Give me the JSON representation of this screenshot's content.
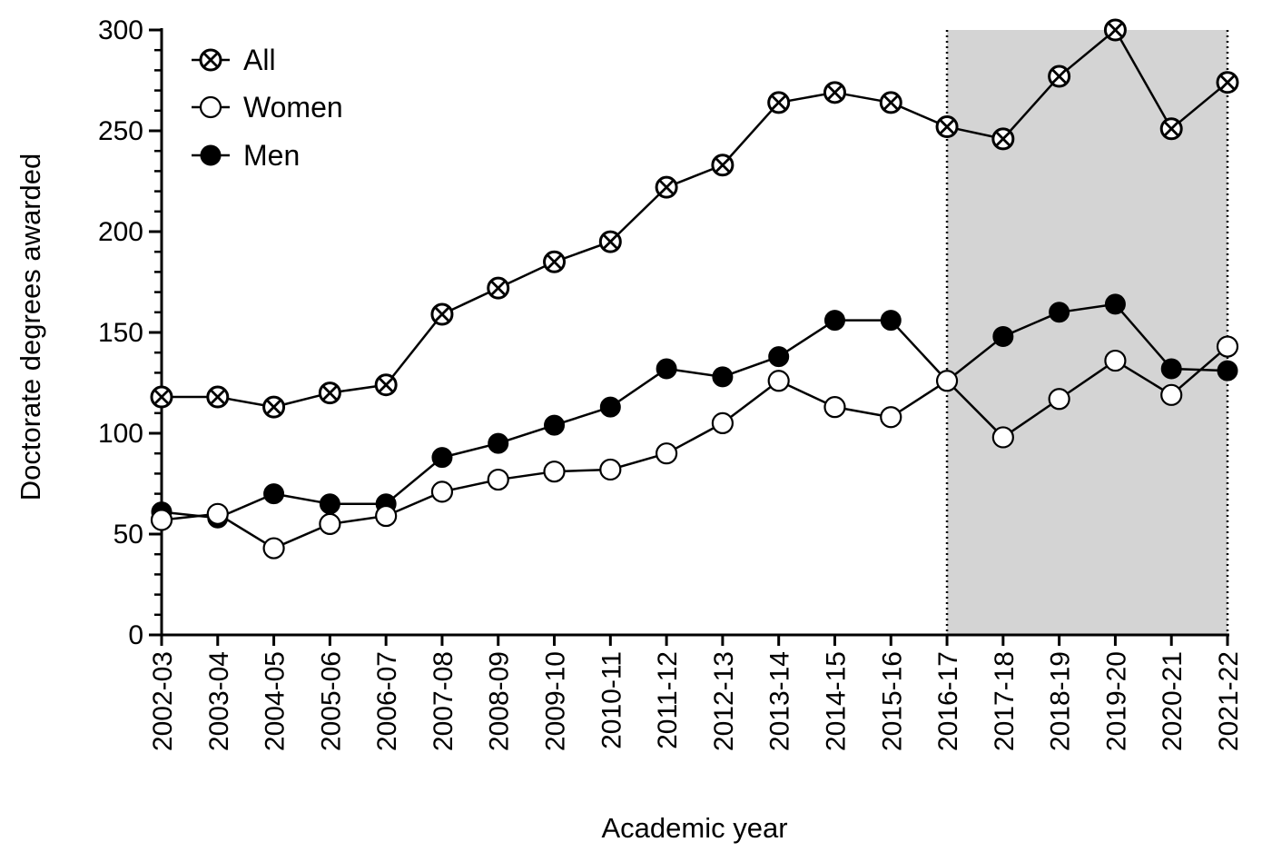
{
  "chart_data": {
    "type": "line",
    "title": "",
    "xlabel": "Academic year",
    "ylabel": "Doctorate degrees awarded",
    "ylim": [
      0,
      300
    ],
    "yticks": [
      0,
      50,
      100,
      150,
      200,
      250,
      300
    ],
    "grid": false,
    "legend_position": "top-left",
    "categories": [
      "2002-03",
      "2003-04",
      "2004-05",
      "2005-06",
      "2006-07",
      "2007-08",
      "2008-09",
      "2009-10",
      "2010-11",
      "2011-12",
      "2012-13",
      "2013-14",
      "2014-15",
      "2015-16",
      "2016-17",
      "2017-18",
      "2018-19",
      "2019-20",
      "2020-21",
      "2021-22"
    ],
    "shaded_region": {
      "from": "2016-17",
      "to": "2021-22",
      "color": "#d4d4d4"
    },
    "series": [
      {
        "name": "All",
        "marker": "circle-x",
        "values": [
          118,
          118,
          113,
          120,
          124,
          159,
          172,
          185,
          195,
          222,
          233,
          264,
          269,
          264,
          252,
          246,
          277,
          300,
          251,
          274
        ]
      },
      {
        "name": "Women",
        "marker": "circle-open",
        "values": [
          57,
          60,
          43,
          55,
          59,
          71,
          77,
          81,
          82,
          90,
          105,
          126,
          113,
          108,
          126,
          98,
          117,
          136,
          119,
          143
        ]
      },
      {
        "name": "Men",
        "marker": "circle-filled",
        "values": [
          61,
          58,
          70,
          65,
          65,
          88,
          95,
          104,
          113,
          132,
          128,
          138,
          156,
          156,
          126,
          148,
          160,
          164,
          132,
          131
        ]
      }
    ]
  }
}
